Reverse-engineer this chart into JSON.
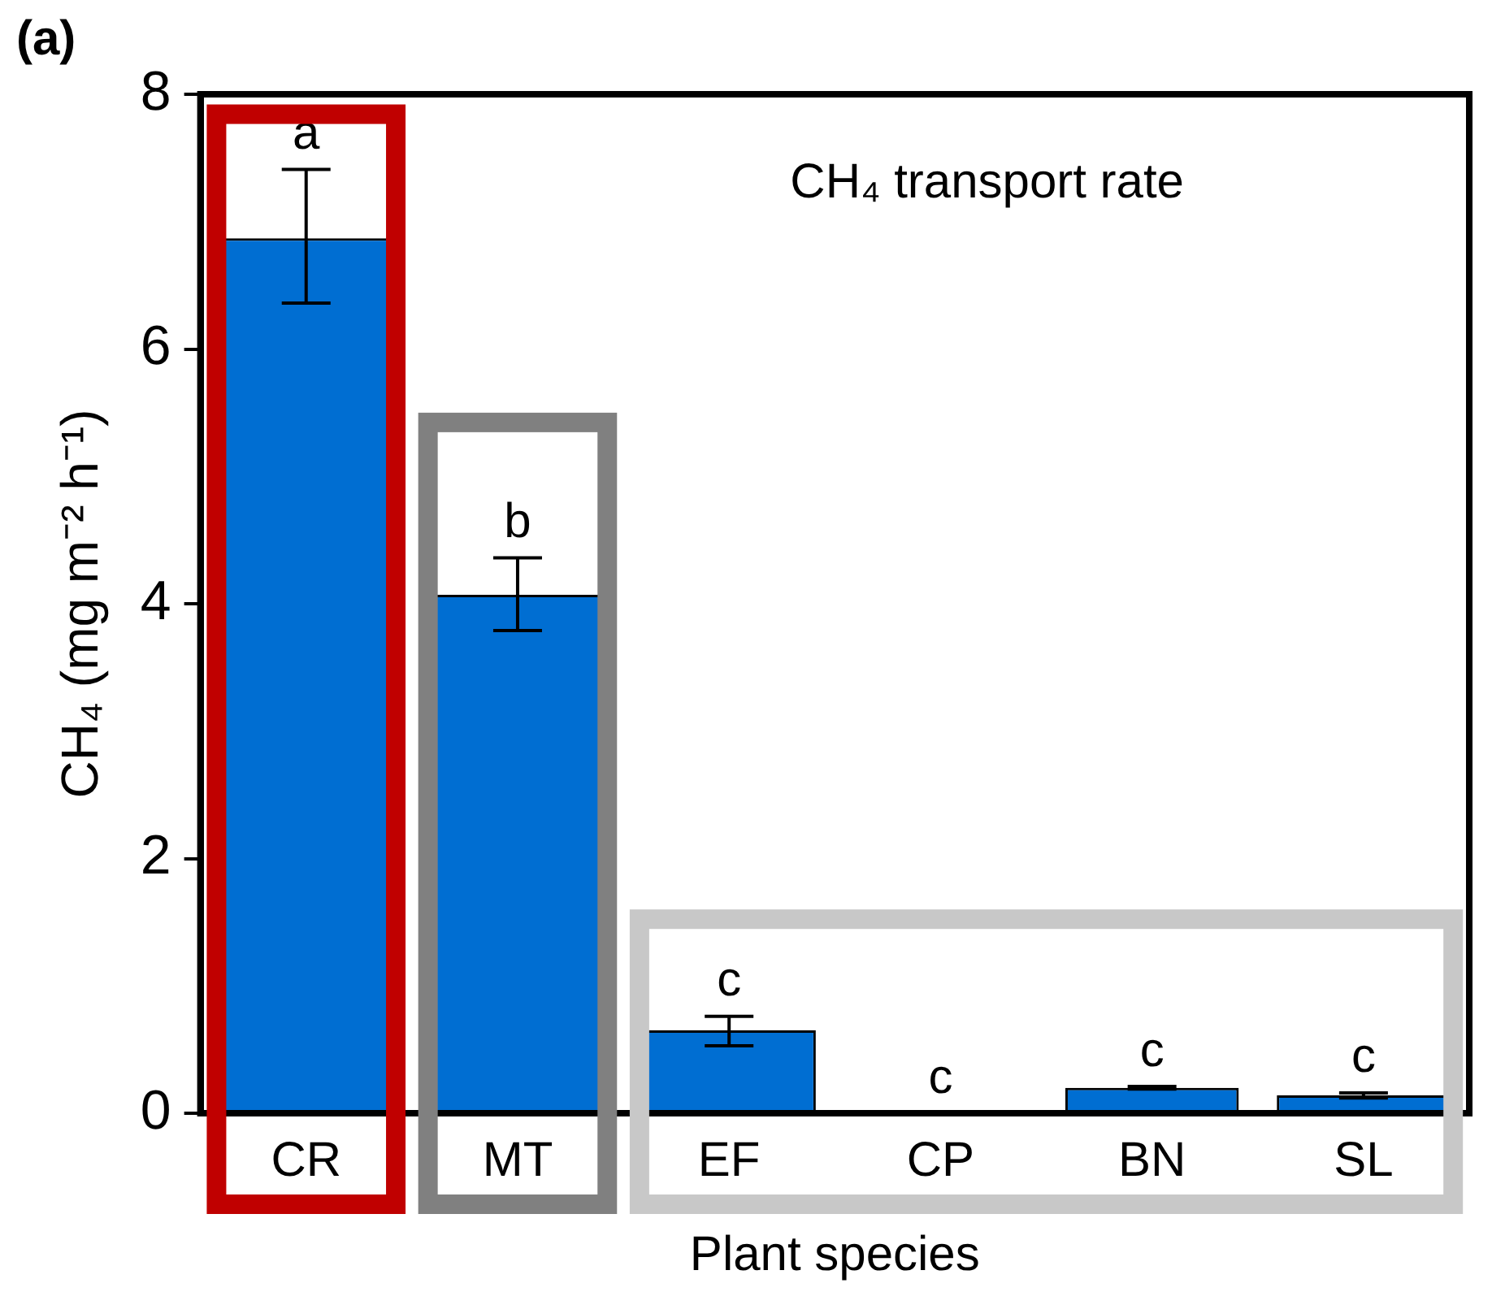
{
  "chart_data": {
    "type": "bar",
    "title": "CH₄ transport rate",
    "xlabel": "Plant species",
    "ylabel": "CH₄ (mg m⁻² h⁻¹)",
    "categories": [
      "CR",
      "MT",
      "EF",
      "CP",
      "BN",
      "SL"
    ],
    "values": [
      6.87,
      4.07,
      0.65,
      0,
      0.2,
      0.14
    ],
    "errors": [
      [
        6.36,
        7.41
      ],
      [
        3.79,
        4.36
      ],
      [
        0.53,
        0.76
      ],
      null,
      [
        0.19,
        0.21
      ],
      [
        0.12,
        0.16
      ]
    ],
    "color": "#006ed2",
    "ylim": [
      0,
      8
    ],
    "yticks": [
      0,
      2,
      4,
      6,
      8
    ],
    "grid": false,
    "legend": false,
    "annotations": [
      "(a)",
      {
        "text": "a",
        "x": "CR",
        "y": 7.41
      },
      {
        "text": "b",
        "x": "MT",
        "y": 4.36
      },
      {
        "text": "c",
        "x": "EF",
        "y": 0.76
      },
      {
        "text": "c",
        "x": "CP",
        "y": 0
      },
      {
        "text": "c",
        "x": "BN",
        "y": 0.21
      },
      {
        "text": "c",
        "x": "SL",
        "y": 0.16
      }
    ]
  }
}
